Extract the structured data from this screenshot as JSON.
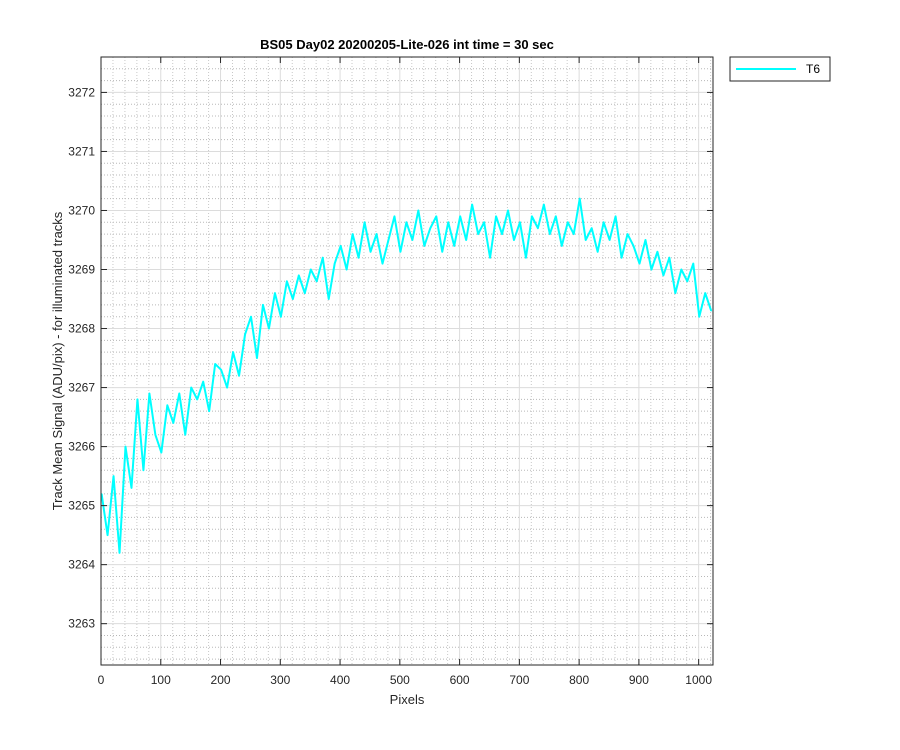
{
  "chart_data": {
    "type": "line",
    "title": "BS05 Day02 20200205-Lite-026 int time = 30 sec",
    "xlabel": "Pixels",
    "ylabel": "Track Mean Signal (ADU/pix) - for illuminated tracks",
    "xlim": [
      0,
      1024
    ],
    "ylim": [
      3262.3,
      3272.6
    ],
    "xticks": [
      0,
      100,
      200,
      300,
      400,
      500,
      600,
      700,
      800,
      900,
      1000
    ],
    "yticks": [
      3263,
      3264,
      3265,
      3266,
      3267,
      3268,
      3269,
      3270,
      3271,
      3272
    ],
    "grid": true,
    "minor_grid": true,
    "legend_position": "outside-top-right",
    "series": [
      {
        "name": "T6",
        "color": "#00ffff",
        "x": [
          1,
          11,
          21,
          31,
          41,
          51,
          61,
          71,
          81,
          91,
          101,
          111,
          121,
          131,
          141,
          151,
          161,
          171,
          181,
          191,
          201,
          211,
          221,
          231,
          241,
          251,
          261,
          271,
          281,
          291,
          301,
          311,
          321,
          331,
          341,
          351,
          361,
          371,
          381,
          391,
          401,
          411,
          421,
          431,
          441,
          451,
          461,
          471,
          481,
          491,
          501,
          511,
          521,
          531,
          541,
          551,
          561,
          571,
          581,
          591,
          601,
          611,
          621,
          631,
          641,
          651,
          661,
          671,
          681,
          691,
          701,
          711,
          721,
          731,
          741,
          751,
          761,
          771,
          781,
          791,
          801,
          811,
          821,
          831,
          841,
          851,
          861,
          871,
          881,
          891,
          901,
          911,
          921,
          931,
          941,
          951,
          961,
          971,
          981,
          991,
          1001,
          1011,
          1021
        ],
        "y": [
          3265.2,
          3264.5,
          3265.5,
          3264.2,
          3266.0,
          3265.3,
          3266.8,
          3265.6,
          3266.9,
          3266.2,
          3265.9,
          3266.7,
          3266.4,
          3266.9,
          3266.2,
          3267.0,
          3266.8,
          3267.1,
          3266.6,
          3267.4,
          3267.3,
          3267.0,
          3267.6,
          3267.2,
          3267.9,
          3268.2,
          3267.5,
          3268.4,
          3268.0,
          3268.6,
          3268.2,
          3268.8,
          3268.5,
          3268.9,
          3268.6,
          3269.0,
          3268.8,
          3269.2,
          3268.5,
          3269.1,
          3269.4,
          3269.0,
          3269.6,
          3269.2,
          3269.8,
          3269.3,
          3269.6,
          3269.1,
          3269.5,
          3269.9,
          3269.3,
          3269.8,
          3269.5,
          3270.0,
          3269.4,
          3269.7,
          3269.9,
          3269.3,
          3269.8,
          3269.4,
          3269.9,
          3269.5,
          3270.1,
          3269.6,
          3269.8,
          3269.2,
          3269.9,
          3269.6,
          3270.0,
          3269.5,
          3269.8,
          3269.2,
          3269.9,
          3269.7,
          3270.1,
          3269.6,
          3269.9,
          3269.4,
          3269.8,
          3269.6,
          3270.2,
          3269.5,
          3269.7,
          3269.3,
          3269.8,
          3269.5,
          3269.9,
          3269.2,
          3269.6,
          3269.4,
          3269.1,
          3269.5,
          3269.0,
          3269.3,
          3268.9,
          3269.2,
          3268.6,
          3269.0,
          3268.8,
          3269.1,
          3268.2,
          3268.6,
          3268.3
        ]
      }
    ]
  }
}
